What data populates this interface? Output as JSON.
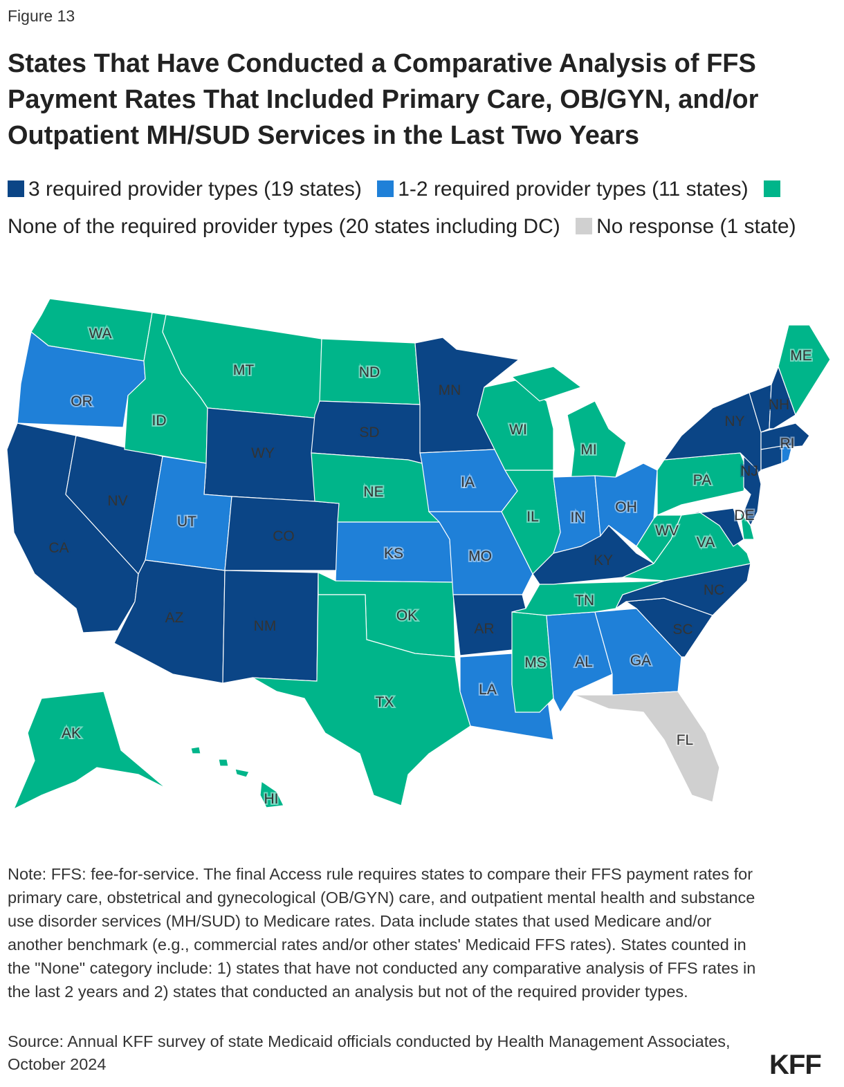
{
  "figure_label": "Figure 13",
  "title": "States That Have Conducted a Comparative Analysis of FFS Payment Rates That Included Primary Care, OB/GYN, and/or Outpatient MH/SUD Services in the Last Two Years",
  "legend": [
    {
      "key": "three",
      "label": "3 required provider types (19 states)",
      "color": "#0b4586"
    },
    {
      "key": "some",
      "label": "1-2 required provider types (11 states)",
      "color": "#1f80d8"
    },
    {
      "key": "none",
      "label": "None of the required provider types (20 states including DC)",
      "color": "#00b58a"
    },
    {
      "key": "nr",
      "label": "No response (1 state)",
      "color": "#d0d0d0"
    }
  ],
  "states": {
    "CA": "three",
    "NV": "three",
    "AZ": "three",
    "NM": "three",
    "CO": "three",
    "WY": "three",
    "SD": "three",
    "MN": "three",
    "AR": "three",
    "KY": "three",
    "NC": "three",
    "SC": "three",
    "NY": "three",
    "VT": "three",
    "NH": "three",
    "MA": "three",
    "CT": "three",
    "NJ": "three",
    "MD": "three",
    "OR": "some",
    "UT": "some",
    "KS": "some",
    "IA": "some",
    "MO": "some",
    "LA": "some",
    "AL": "some",
    "GA": "some",
    "IN": "some",
    "OH": "some",
    "RI": "some",
    "WA": "none",
    "ID": "none",
    "MT": "none",
    "ND": "none",
    "NE": "none",
    "OK": "none",
    "TX": "none",
    "WI": "none",
    "IL": "none",
    "MI": "none",
    "MS": "none",
    "TN": "none",
    "WV": "none",
    "VA": "none",
    "PA": "none",
    "DE": "none",
    "ME": "none",
    "AK": "none",
    "HI": "none",
    "DC": "none",
    "FL": "nr"
  },
  "note": "Note: FFS: fee-for-service. The final Access rule requires states to compare their FFS payment rates for primary care, obstetrical and gynecological (OB/GYN) care, and outpatient mental health and substance use disorder services (MH/SUD) to Medicare rates. Data include states that used Medicare and/or another benchmark (e.g., commercial rates and/or other states' Medicaid FFS rates). States counted in the \"None\" category include: 1) states that have not conducted any comparative analysis of FFS rates in the last 2 years and 2) states that conducted an analysis but not of the required provider types.",
  "source": "Source: Annual KFF survey of state Medicaid officials conducted by Health Management Associates, October 2024",
  "logo": "KFF"
}
